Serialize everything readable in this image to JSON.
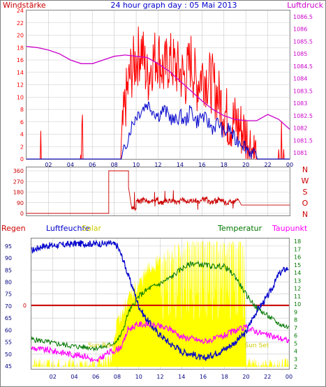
{
  "colors": {
    "wind": "#ff0000",
    "gust_blue": "#0000cc",
    "pressure": "#cc00cc",
    "direction": "#cc0000",
    "humidity": "#0000cc",
    "solar": "#ffff00",
    "temperature": "#007700",
    "dewpoint": "#ff00ff",
    "rain": "#cc0000",
    "grid": "#c8c8c8",
    "frame": "#7f7f7f"
  },
  "chart_data": [
    {
      "type": "line",
      "title": "24 hour graph day : 05 Mai 2013",
      "left_label": "Windstärke",
      "right_label": "Luftdruck",
      "x_ticks": [
        "02",
        "04",
        "06",
        "08",
        "10",
        "12",
        "14",
        "16",
        "18",
        "20",
        "22",
        "00"
      ],
      "x_range": [
        0,
        24
      ],
      "left_ylim": [
        0,
        24
      ],
      "left_ticks": [
        0,
        2,
        4,
        6,
        8,
        10,
        12,
        14,
        16,
        18,
        20,
        22,
        24
      ],
      "right_ylim": [
        1080.75,
        1086.75
      ],
      "right_ticks": [
        "1081",
        "1081.5",
        "1082",
        "1082.5",
        "1083",
        "1083.5",
        "1084",
        "1084.5",
        "1085",
        "1085.5",
        "1086",
        "1086.5"
      ],
      "series": [
        {
          "key": "wind_speed",
          "axis": "left",
          "x": [
            0,
            1.3,
            1.35,
            1.4,
            4.9,
            5.0,
            5.1,
            5.2,
            8.6,
            8.8,
            9.0,
            9.5,
            10.0,
            10.5,
            11.0,
            11.5,
            12.0,
            12.5,
            13.0,
            13.5,
            14.0,
            14.5,
            15.0,
            15.5,
            16.0,
            16.5,
            17.0,
            17.5,
            18.0,
            18.5,
            19.0,
            19.5,
            20.0,
            20.5,
            21.0,
            21.5,
            22.0,
            23.0,
            23.4,
            23.5,
            24
          ],
          "y": [
            0,
            0,
            1.2,
            0,
            0,
            2,
            3.2,
            0,
            0,
            5,
            9,
            14,
            16,
            18,
            13,
            16,
            17,
            14,
            16,
            15,
            14,
            13,
            16,
            12,
            14,
            13,
            12,
            10,
            8,
            6,
            6,
            5,
            4,
            2,
            0,
            0,
            0,
            0,
            1.8,
            0,
            0
          ]
        },
        {
          "key": "wind_average",
          "axis": "left",
          "x": [
            0,
            8.7,
            9.0,
            9.5,
            10.0,
            10.5,
            11.0,
            11.5,
            12.0,
            12.5,
            13.0,
            13.5,
            14.0,
            14.5,
            15.0,
            15.5,
            16.0,
            16.5,
            17.0,
            17.5,
            18.0,
            18.5,
            19.0,
            19.5,
            20.0,
            20.5,
            21.0,
            24
          ],
          "y": [
            0,
            0,
            2,
            5,
            7,
            8,
            9,
            8,
            7,
            8,
            7,
            6,
            7,
            6,
            8,
            6,
            7,
            6,
            5,
            6,
            4,
            5,
            3,
            3,
            2,
            1,
            0,
            0
          ]
        },
        {
          "key": "pressure",
          "axis": "right",
          "x": [
            0,
            1,
            2,
            3,
            4,
            5,
            6,
            7,
            8,
            9,
            10,
            11,
            12,
            13,
            14,
            15,
            16,
            17,
            18,
            19,
            20,
            21,
            22,
            23,
            24
          ],
          "y": [
            1085.3,
            1085.25,
            1085.15,
            1085.0,
            1084.75,
            1084.6,
            1084.6,
            1084.75,
            1084.9,
            1084.95,
            1084.9,
            1084.85,
            1084.6,
            1084.3,
            1083.9,
            1083.5,
            1083.1,
            1082.75,
            1082.5,
            1082.35,
            1082.3,
            1082.3,
            1082.55,
            1082.35,
            1081.95
          ]
        }
      ]
    },
    {
      "type": "line",
      "right_letters": [
        "N",
        "W",
        "S",
        "O",
        "N"
      ],
      "x_range": [
        0,
        24
      ],
      "ylim": [
        0,
        360
      ],
      "y_ticks": [
        0,
        90,
        180,
        270,
        360
      ],
      "series": [
        {
          "key": "wind_direction",
          "x": [
            0,
            7.5,
            7.5,
            9.3,
            9.3,
            9.6,
            10,
            10.5,
            11,
            11.5,
            12,
            12.5,
            13,
            13.5,
            14,
            14.5,
            15,
            15.5,
            16,
            16.5,
            17,
            17.5,
            18,
            18.5,
            19,
            19.3,
            19.6,
            24
          ],
          "y": [
            0,
            0,
            360,
            360,
            220,
            40,
            100,
            110,
            95,
            120,
            90,
            105,
            110,
            95,
            115,
            100,
            110,
            95,
            120,
            95,
            100,
            115,
            90,
            100,
            110,
            120,
            70,
            70
          ]
        }
      ]
    },
    {
      "type": "line",
      "labels": {
        "rain": "Regen",
        "humidity": "Luftfeuchte",
        "solar": "Solar",
        "temperature": "Temperatur",
        "dewpoint": "Taupunkt",
        "sunrise": "Sun Rise",
        "sunset": "Sun Set"
      },
      "x_ticks": [
        "02",
        "04",
        "06",
        "08",
        "10",
        "12",
        "14",
        "16",
        "18",
        "20",
        "22",
        "00"
      ],
      "x_range": [
        0,
        24
      ],
      "left_ylim": [
        45,
        97
      ],
      "left_ticks": [
        45,
        50,
        55,
        60,
        65,
        70,
        75,
        80,
        85,
        90,
        95
      ],
      "rain_tick": "0",
      "rain_value": 0,
      "right_ylim": [
        2,
        18
      ],
      "right_ticks": [
        2,
        3,
        4,
        5,
        6,
        7,
        8,
        9,
        10,
        11,
        12,
        13,
        14,
        15,
        16,
        17,
        18
      ],
      "sunrise_hour": 5.4,
      "sunset_hour": 20.0,
      "series": [
        {
          "key": "humidity",
          "axis": "left",
          "x": [
            0,
            0.5,
            1,
            3,
            4,
            5,
            6,
            7,
            7.5,
            8,
            8.5,
            9,
            9.5,
            10,
            10.5,
            11,
            11.5,
            12,
            12.5,
            13,
            13.5,
            14,
            15,
            16,
            16.5,
            17,
            18,
            19,
            19.5,
            20,
            20.5,
            21,
            22,
            22.5,
            23,
            23.5,
            24
          ],
          "y": [
            93,
            94,
            95,
            95.5,
            96,
            96,
            96,
            96,
            96,
            95,
            90,
            83,
            77,
            70,
            66,
            63,
            60,
            58,
            56,
            54,
            53,
            51,
            50,
            48,
            49,
            50,
            52,
            55,
            57,
            59,
            64,
            68,
            74,
            78,
            83,
            85,
            86
          ]
        },
        {
          "key": "temperature",
          "axis": "right",
          "x": [
            0,
            1,
            2,
            3,
            4,
            5,
            6,
            7,
            8,
            8.5,
            9,
            10,
            11,
            12,
            13,
            14,
            15,
            16,
            17,
            18,
            19,
            20,
            21,
            22,
            23,
            24
          ],
          "y": [
            5.5,
            5.3,
            5.0,
            4.8,
            4.6,
            4.5,
            4.4,
            4.6,
            5.3,
            6.5,
            8.8,
            11.0,
            12.0,
            12.6,
            13.4,
            14.5,
            15.2,
            15.0,
            14.8,
            14.8,
            13.5,
            11.2,
            9.5,
            8.5,
            7.5,
            7.0
          ]
        },
        {
          "key": "dewpoint",
          "axis": "right",
          "x": [
            0,
            1,
            2,
            3,
            4,
            5,
            6,
            7,
            8,
            8.5,
            9,
            10,
            11,
            12,
            13,
            14,
            15,
            16,
            17,
            18,
            19,
            20,
            21,
            22,
            23,
            24
          ],
          "y": [
            4.4,
            4.2,
            4.0,
            3.8,
            3.5,
            3.4,
            2.6,
            3.7,
            4.2,
            4.8,
            6.8,
            7.4,
            7.4,
            7.1,
            6.8,
            5.8,
            5.6,
            5.2,
            5.5,
            6.0,
            6.6,
            7.0,
            6.5,
            6.0,
            5.7,
            5.3
          ]
        },
        {
          "key": "solar",
          "axis": "right",
          "x": [
            0,
            5.4,
            6.5,
            7.5,
            8,
            8.5,
            9,
            9.5,
            10,
            10.5,
            11,
            12,
            13,
            14,
            14.5,
            15,
            16,
            17,
            18,
            19,
            19.8,
            20.0,
            24
          ],
          "y": [
            2,
            2,
            2.2,
            3.0,
            8.0,
            9.0,
            10.5,
            11.5,
            12.5,
            13.5,
            14.5,
            15.5,
            16.2,
            17.0,
            18,
            18,
            17.8,
            18,
            17,
            18,
            18,
            2,
            2
          ]
        }
      ]
    }
  ]
}
